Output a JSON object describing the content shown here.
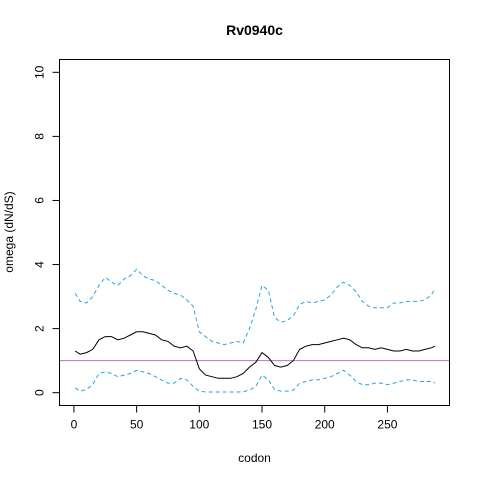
{
  "chart_data": {
    "type": "line",
    "title": "Rv0940c",
    "xlabel": "codon",
    "ylabel": "omega (dN/dS)",
    "xlim": [
      -11.5,
      299.5
    ],
    "ylim": [
      -0.4,
      10.4
    ],
    "xticks": [
      0,
      50,
      100,
      150,
      200,
      250
    ],
    "yticks": [
      0,
      2,
      4,
      6,
      8,
      10
    ],
    "reference_line": {
      "y": 1,
      "color": "#cc66cc"
    },
    "grid": false,
    "series": [
      {
        "role": "estimate",
        "color": "#000000",
        "style": "solid",
        "x": [
          1,
          5,
          10,
          15,
          20,
          25,
          30,
          35,
          40,
          45,
          50,
          55,
          60,
          65,
          70,
          75,
          80,
          85,
          90,
          95,
          100,
          105,
          110,
          115,
          120,
          125,
          130,
          135,
          140,
          145,
          150,
          155,
          160,
          165,
          170,
          175,
          180,
          185,
          190,
          195,
          200,
          205,
          210,
          215,
          220,
          225,
          230,
          235,
          240,
          245,
          250,
          255,
          260,
          265,
          270,
          275,
          280,
          285,
          288
        ],
        "y": [
          1.3,
          1.2,
          1.25,
          1.35,
          1.65,
          1.75,
          1.75,
          1.65,
          1.7,
          1.8,
          1.9,
          1.9,
          1.85,
          1.8,
          1.65,
          1.6,
          1.45,
          1.4,
          1.45,
          1.3,
          0.75,
          0.55,
          0.5,
          0.45,
          0.45,
          0.45,
          0.5,
          0.6,
          0.8,
          0.95,
          1.25,
          1.1,
          0.85,
          0.8,
          0.85,
          1.0,
          1.35,
          1.45,
          1.5,
          1.5,
          1.55,
          1.6,
          1.65,
          1.7,
          1.65,
          1.5,
          1.4,
          1.4,
          1.35,
          1.4,
          1.35,
          1.3,
          1.3,
          1.35,
          1.3,
          1.3,
          1.35,
          1.4,
          1.45
        ]
      },
      {
        "role": "upper",
        "color": "#29a3e0",
        "style": "dashed",
        "x": [
          1,
          5,
          10,
          15,
          20,
          25,
          30,
          35,
          40,
          45,
          50,
          55,
          60,
          65,
          70,
          75,
          80,
          85,
          90,
          95,
          100,
          105,
          110,
          115,
          120,
          125,
          130,
          135,
          140,
          145,
          150,
          155,
          160,
          165,
          170,
          175,
          180,
          185,
          190,
          195,
          200,
          205,
          210,
          215,
          220,
          225,
          230,
          235,
          240,
          245,
          250,
          255,
          260,
          265,
          270,
          275,
          280,
          285,
          288
        ],
        "y": [
          3.1,
          2.85,
          2.8,
          3.0,
          3.35,
          3.6,
          3.45,
          3.35,
          3.55,
          3.65,
          3.85,
          3.65,
          3.55,
          3.5,
          3.35,
          3.2,
          3.1,
          3.05,
          2.9,
          2.7,
          1.9,
          1.75,
          1.6,
          1.55,
          1.5,
          1.55,
          1.6,
          1.55,
          2.0,
          2.6,
          3.35,
          3.2,
          2.35,
          2.2,
          2.25,
          2.4,
          2.75,
          2.85,
          2.8,
          2.85,
          2.9,
          3.05,
          3.3,
          3.45,
          3.35,
          3.15,
          2.85,
          2.7,
          2.65,
          2.65,
          2.65,
          2.8,
          2.8,
          2.85,
          2.85,
          2.85,
          2.9,
          3.05,
          3.25
        ]
      },
      {
        "role": "lower",
        "color": "#29a3e0",
        "style": "dashed",
        "x": [
          1,
          5,
          10,
          15,
          20,
          25,
          30,
          35,
          40,
          45,
          50,
          55,
          60,
          65,
          70,
          75,
          80,
          85,
          90,
          95,
          100,
          105,
          110,
          115,
          120,
          125,
          130,
          135,
          140,
          145,
          150,
          155,
          160,
          165,
          170,
          175,
          180,
          185,
          190,
          195,
          200,
          205,
          210,
          215,
          220,
          225,
          230,
          235,
          240,
          245,
          250,
          255,
          260,
          265,
          270,
          275,
          280,
          285,
          288
        ],
        "y": [
          0.15,
          0.05,
          0.1,
          0.25,
          0.6,
          0.65,
          0.6,
          0.5,
          0.55,
          0.6,
          0.7,
          0.65,
          0.6,
          0.5,
          0.4,
          0.3,
          0.3,
          0.45,
          0.4,
          0.2,
          0.05,
          0.02,
          0.02,
          0.02,
          0.02,
          0.02,
          0.02,
          0.03,
          0.08,
          0.2,
          0.55,
          0.4,
          0.1,
          0.05,
          0.05,
          0.08,
          0.3,
          0.35,
          0.4,
          0.4,
          0.45,
          0.5,
          0.6,
          0.7,
          0.55,
          0.35,
          0.25,
          0.25,
          0.3,
          0.3,
          0.25,
          0.3,
          0.35,
          0.4,
          0.4,
          0.35,
          0.35,
          0.35,
          0.3
        ]
      }
    ]
  }
}
